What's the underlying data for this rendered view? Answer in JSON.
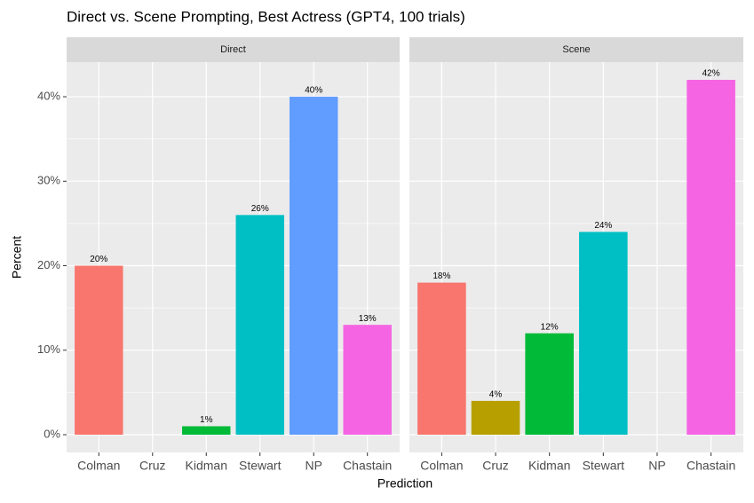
{
  "title": "Direct vs. Scene Prompting, Best Actress (GPT4, 100 trials)",
  "x_label": "Prediction",
  "y_label": "Percent",
  "chart_data": [
    {
      "type": "bar",
      "title": "Direct",
      "categories": [
        "Colman",
        "Cruz",
        "Kidman",
        "Stewart",
        "NP",
        "Chastain"
      ],
      "values": [
        20,
        null,
        1,
        26,
        40,
        13
      ],
      "value_labels": [
        "20%",
        null,
        "1%",
        "26%",
        "40%",
        "13%"
      ],
      "colors": [
        "#F8766D",
        "#B79F00",
        "#00BA38",
        "#00BFC4",
        "#619CFF",
        "#F564E3"
      ],
      "ylim": [
        -2.1,
        44.1
      ],
      "yticks": [
        {
          "value": 0,
          "label": "0%"
        },
        {
          "value": 10,
          "label": "10%"
        },
        {
          "value": 20,
          "label": "20%"
        },
        {
          "value": 30,
          "label": "30%"
        },
        {
          "value": 40,
          "label": "40%"
        }
      ],
      "minor_yticks": [
        5,
        15,
        25,
        35
      ],
      "grid": true
    },
    {
      "type": "bar",
      "title": "Scene",
      "categories": [
        "Colman",
        "Cruz",
        "Kidman",
        "Stewart",
        "NP",
        "Chastain"
      ],
      "values": [
        18,
        4,
        12,
        24,
        null,
        42
      ],
      "value_labels": [
        "18%",
        "4%",
        "12%",
        "24%",
        null,
        "42%"
      ],
      "colors": [
        "#F8766D",
        "#B79F00",
        "#00BA38",
        "#00BFC4",
        "#619CFF",
        "#F564E3"
      ],
      "ylim": [
        -2.1,
        44.1
      ],
      "yticks": [
        0,
        10,
        20,
        30,
        40
      ],
      "minor_yticks": [
        5,
        15,
        25,
        35
      ],
      "grid": true
    }
  ]
}
